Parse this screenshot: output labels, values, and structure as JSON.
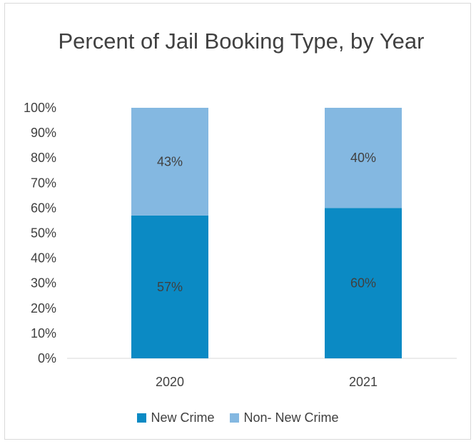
{
  "chart_data": {
    "type": "bar",
    "stacked": true,
    "title": "Percent of Jail Booking Type, by Year",
    "categories": [
      "2020",
      "2021"
    ],
    "series": [
      {
        "name": "New Crime",
        "values": [
          57,
          60
        ],
        "color": "#0b8ac4",
        "labels": [
          "57%",
          "60%"
        ]
      },
      {
        "name": "Non- New Crime",
        "values": [
          43,
          40
        ],
        "color": "#84b8e1",
        "labels": [
          "43%",
          "40%"
        ]
      }
    ],
    "ylim": [
      0,
      100
    ],
    "yticks": [
      "0%",
      "10%",
      "20%",
      "30%",
      "40%",
      "50%",
      "60%",
      "70%",
      "80%",
      "90%",
      "100%"
    ],
    "grid": false,
    "legend_position": "bottom"
  }
}
